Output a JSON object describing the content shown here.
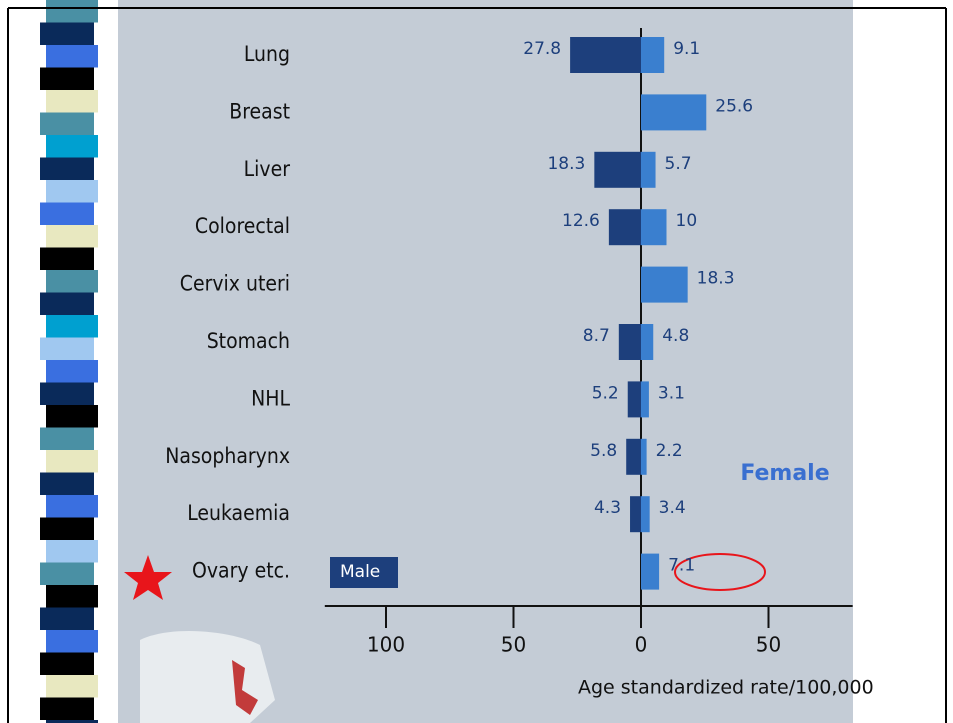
{
  "chart_data": {
    "type": "butterfly-bar",
    "categories": [
      "Lung",
      "Breast",
      "Liver",
      "Colorectal",
      "Cervix uteri",
      "Stomach",
      "NHL",
      "Nasopharynx",
      "Leukaemia",
      "Ovary etc."
    ],
    "series": [
      {
        "name": "Male",
        "color": "#1d3f7c",
        "side": "left",
        "values": [
          27.8,
          null,
          18.3,
          12.6,
          null,
          8.7,
          5.2,
          5.8,
          4.3,
          null
        ]
      },
      {
        "name": "Female",
        "color": "#3a7fcf",
        "side": "right",
        "values": [
          9.1,
          25.6,
          5.7,
          10,
          18.3,
          4.8,
          3.1,
          2.2,
          3.4,
          7.1
        ]
      }
    ],
    "xlim": [
      -124,
      83
    ],
    "xticks": [
      {
        "value": -100,
        "label": "100"
      },
      {
        "value": -50,
        "label": "50"
      },
      0,
      50
    ],
    "xlabel": "Age standardized rate/100,000"
  }
}
